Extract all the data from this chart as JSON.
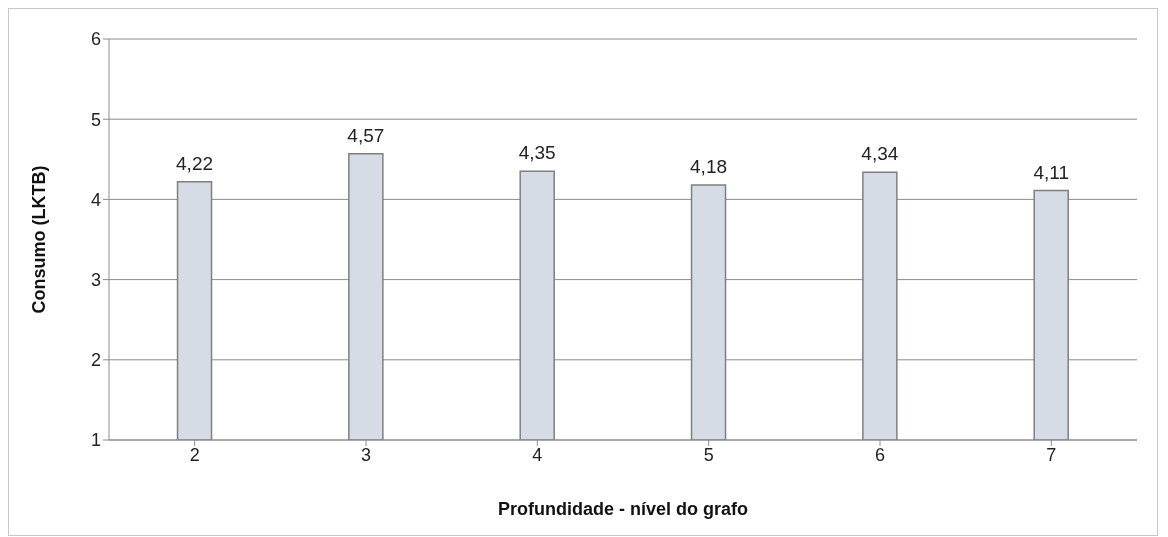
{
  "chart_data": {
    "type": "bar",
    "xlabel": "Profundidade - nível do grafo",
    "ylabel": "Consumo (LKTB)",
    "categories": [
      "2",
      "3",
      "4",
      "5",
      "6",
      "7"
    ],
    "values": [
      4.22,
      4.57,
      4.35,
      4.18,
      4.34,
      4.11
    ],
    "value_labels": [
      "4,22",
      "4,57",
      "4,35",
      "4,18",
      "4,34",
      "4,11"
    ],
    "color": "#d6dce5",
    "ylim": [
      1,
      6
    ],
    "yticks": [
      1,
      2,
      3,
      4,
      5,
      6
    ],
    "grid": "y"
  }
}
